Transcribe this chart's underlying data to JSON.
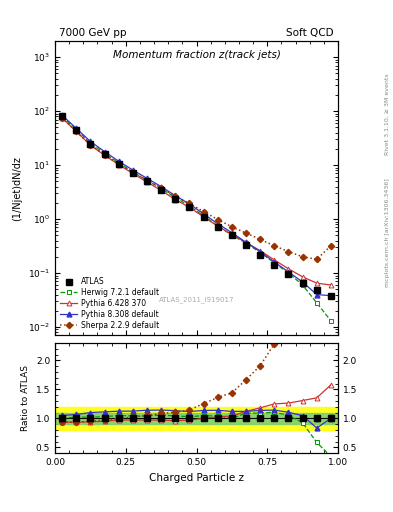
{
  "title_top_left": "7000 GeV pp",
  "title_top_right": "Soft QCD",
  "plot_title": "Momentum fraction z(track jets)",
  "ylabel_main": "(1/Njet)dN/dz",
  "ylabel_ratio": "Ratio to ATLAS",
  "xlabel": "Charged Particle z",
  "right_label_top": "Rivet 3.1.10, ≥ 3M events",
  "right_label_bottom": "mcplots.cern.ch [arXiv:1306.3436]",
  "watermark": "ATLAS_2011_I919017",
  "atlas_x": [
    0.025,
    0.075,
    0.125,
    0.175,
    0.225,
    0.275,
    0.325,
    0.375,
    0.425,
    0.475,
    0.525,
    0.575,
    0.625,
    0.675,
    0.725,
    0.775,
    0.825,
    0.875,
    0.925,
    0.975
  ],
  "atlas_y": [
    80.0,
    45.0,
    25.0,
    16.0,
    10.5,
    7.2,
    5.0,
    3.5,
    2.4,
    1.7,
    1.1,
    0.72,
    0.5,
    0.33,
    0.22,
    0.14,
    0.095,
    0.065,
    0.048,
    0.038
  ],
  "atlas_yerr": [
    3.0,
    1.5,
    0.8,
    0.5,
    0.3,
    0.2,
    0.15,
    0.1,
    0.07,
    0.05,
    0.03,
    0.02,
    0.015,
    0.01,
    0.007,
    0.005,
    0.003,
    0.002,
    0.002,
    0.002
  ],
  "herwig_x": [
    0.025,
    0.075,
    0.125,
    0.175,
    0.225,
    0.275,
    0.325,
    0.375,
    0.425,
    0.475,
    0.525,
    0.575,
    0.625,
    0.675,
    0.725,
    0.775,
    0.825,
    0.875,
    0.925,
    0.975
  ],
  "herwig_y": [
    80.0,
    46.0,
    25.5,
    16.5,
    11.0,
    7.5,
    5.2,
    3.7,
    2.5,
    1.75,
    1.15,
    0.75,
    0.5,
    0.36,
    0.24,
    0.155,
    0.1,
    0.06,
    0.028,
    0.013
  ],
  "pythia6_x": [
    0.025,
    0.075,
    0.125,
    0.175,
    0.225,
    0.275,
    0.325,
    0.375,
    0.425,
    0.475,
    0.525,
    0.575,
    0.625,
    0.675,
    0.725,
    0.775,
    0.825,
    0.875,
    0.925,
    0.975
  ],
  "pythia6_y": [
    75.0,
    42.0,
    23.5,
    15.2,
    10.2,
    7.0,
    4.85,
    3.4,
    2.3,
    1.65,
    1.1,
    0.74,
    0.52,
    0.37,
    0.26,
    0.175,
    0.12,
    0.085,
    0.065,
    0.06
  ],
  "pythia8_x": [
    0.025,
    0.075,
    0.125,
    0.175,
    0.225,
    0.275,
    0.325,
    0.375,
    0.425,
    0.475,
    0.525,
    0.575,
    0.625,
    0.675,
    0.725,
    0.775,
    0.825,
    0.875,
    0.925,
    0.975
  ],
  "pythia8_y": [
    84.0,
    48.0,
    27.5,
    17.8,
    11.8,
    8.1,
    5.7,
    4.0,
    2.72,
    1.9,
    1.25,
    0.82,
    0.56,
    0.37,
    0.25,
    0.16,
    0.105,
    0.068,
    0.04,
    0.038
  ],
  "sherpa_x": [
    0.025,
    0.075,
    0.125,
    0.175,
    0.225,
    0.275,
    0.325,
    0.375,
    0.425,
    0.475,
    0.525,
    0.575,
    0.625,
    0.675,
    0.725,
    0.775,
    0.825,
    0.875,
    0.925,
    0.975
  ],
  "sherpa_y": [
    75.0,
    42.0,
    23.8,
    15.5,
    10.5,
    7.35,
    5.25,
    3.8,
    2.65,
    1.95,
    1.38,
    0.98,
    0.72,
    0.55,
    0.42,
    0.32,
    0.25,
    0.2,
    0.18,
    0.32
  ],
  "ylim_main": [
    0.007,
    2000
  ],
  "ylim_ratio": [
    0.4,
    2.3
  ],
  "xlim": [
    0.0,
    1.0
  ],
  "green_band": [
    0.9,
    1.1
  ],
  "yellow_band": [
    0.8,
    1.2
  ],
  "herwig_color": "#009900",
  "pythia6_color": "#cc3333",
  "pythia8_color": "#3333cc",
  "sherpa_color": "#993300"
}
